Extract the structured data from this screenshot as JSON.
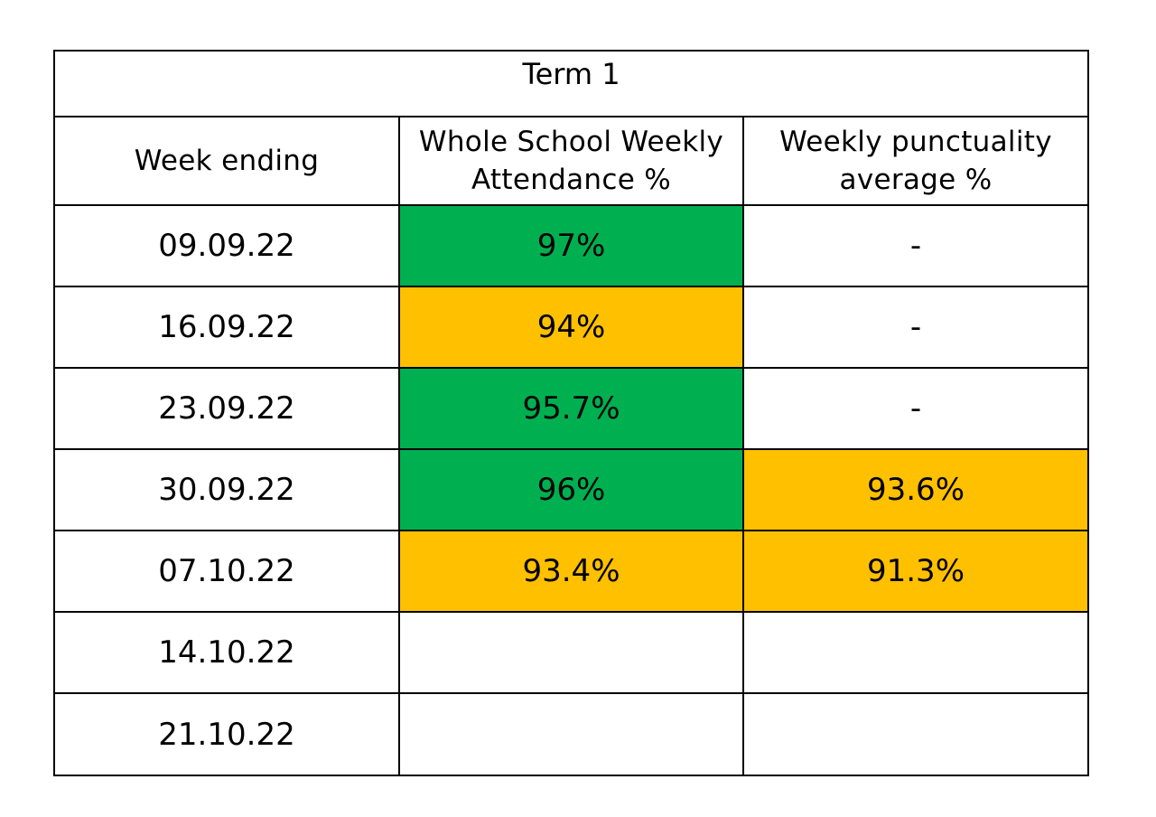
{
  "table": {
    "title": "Term 1",
    "headers": {
      "week": "Week ending",
      "attendance_line1": "Whole School Weekly",
      "attendance_line2": "Attendance  %",
      "punctuality_line1": "Weekly punctuality",
      "punctuality_line2": "average %"
    },
    "rows": [
      {
        "week": "09.09.22",
        "attendance": "97%",
        "punctuality": "-"
      },
      {
        "week": "16.09.22",
        "attendance": "94%",
        "punctuality": "-"
      },
      {
        "week": "23.09.22",
        "attendance": "95.7%",
        "punctuality": "-"
      },
      {
        "week": "30.09.22",
        "attendance": "96%",
        "punctuality": "93.6%"
      },
      {
        "week": "07.10.22",
        "attendance": "93.4%",
        "punctuality": "91.3%"
      },
      {
        "week": "14.10.22",
        "attendance": "",
        "punctuality": ""
      },
      {
        "week": "21.10.22",
        "attendance": "",
        "punctuality": ""
      }
    ]
  },
  "colors": {
    "green": "#00b050",
    "amber": "#ffc000",
    "border": "#000000"
  }
}
